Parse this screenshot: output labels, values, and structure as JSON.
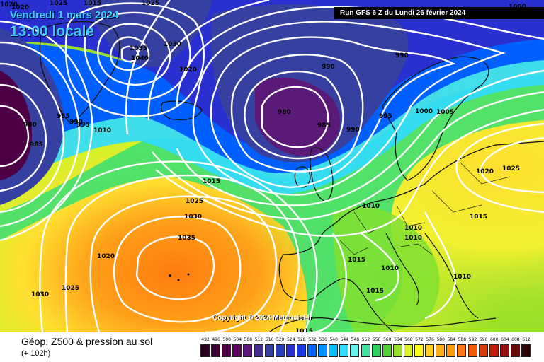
{
  "header": {
    "date": "Vendredi 1 mars 2024",
    "time": "13:00 locale",
    "run": "Run GFS 6 Z du Lundi 26 février 2024"
  },
  "copyright": "Copyright © 2024 Meteociel.fr",
  "footer": {
    "title": "Géop. Z500 & pression au sol",
    "subtitle": "(+ 102h)"
  },
  "legend": {
    "labels": [
      "492",
      "496",
      "500",
      "504",
      "508",
      "512",
      "516",
      "520",
      "524",
      "528",
      "532",
      "536",
      "540",
      "544",
      "548",
      "552",
      "556",
      "560",
      "564",
      "568",
      "572",
      "576",
      "580",
      "584",
      "588",
      "592",
      "596",
      "600",
      "604",
      "608",
      "612"
    ],
    "colors": [
      "#2a001f",
      "#3b0031",
      "#4d0046",
      "#5f005f",
      "#5c1a78",
      "#46308f",
      "#3540a0",
      "#2a3fb8",
      "#2a2fd0",
      "#1a3ce6",
      "#0060ff",
      "#0090ff",
      "#00bfff",
      "#30dcff",
      "#66f2f0",
      "#40e0a0",
      "#30d060",
      "#50d030",
      "#9ae02a",
      "#d8f02a",
      "#ffff20",
      "#ffd020",
      "#ffb018",
      "#ff9a10",
      "#ff7a10",
      "#f05a0a",
      "#d83a0a",
      "#b8200c",
      "#98100c",
      "#6a0808",
      "#300404"
    ]
  },
  "isobar_labels": [
    {
      "text": "1020"
    },
    {
      "text": "1025"
    },
    {
      "text": "1015"
    },
    {
      "text": "1025"
    },
    {
      "text": "1035"
    },
    {
      "text": "1040"
    },
    {
      "text": "1030"
    },
    {
      "text": "1020"
    },
    {
      "text": "980"
    },
    {
      "text": "985"
    },
    {
      "text": "985"
    },
    {
      "text": "990"
    },
    {
      "text": "995"
    },
    {
      "text": "1010"
    },
    {
      "text": "990"
    },
    {
      "text": "990"
    },
    {
      "text": "980"
    },
    {
      "text": "985"
    },
    {
      "text": "990"
    },
    {
      "text": "995"
    },
    {
      "text": "1000"
    },
    {
      "text": "1005"
    },
    {
      "text": "1015"
    },
    {
      "text": "1025"
    },
    {
      "text": "1030"
    },
    {
      "text": "1035"
    },
    {
      "text": "1020"
    },
    {
      "text": "1030"
    },
    {
      "text": "1025"
    },
    {
      "text": "1010"
    },
    {
      "text": "1010"
    },
    {
      "text": "1010"
    },
    {
      "text": "1015"
    },
    {
      "text": "1010"
    },
    {
      "text": "1015"
    },
    {
      "text": "1015"
    },
    {
      "text": "1010"
    },
    {
      "text": "1020"
    },
    {
      "text": "1025"
    },
    {
      "text": "1015"
    },
    {
      "text": "1000"
    },
    {
      "text": "1020"
    }
  ]
}
